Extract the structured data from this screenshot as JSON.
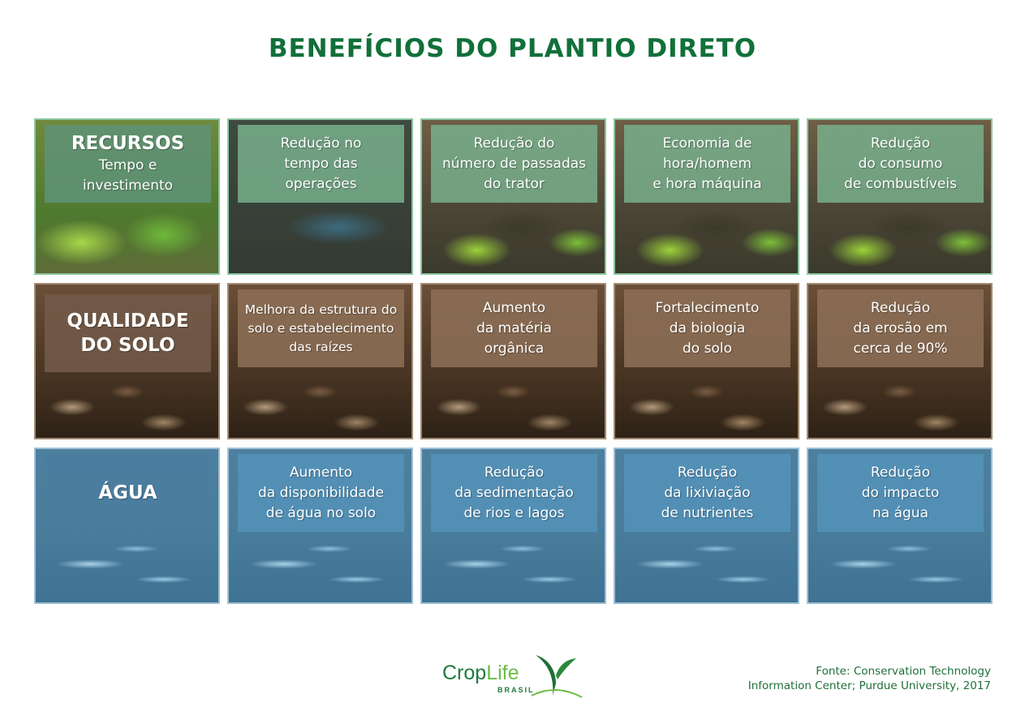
{
  "title": "BENEFÍCIOS DO PLANTIO DIRETO",
  "rows": [
    {
      "theme": "recursos",
      "cells": [
        {
          "heading": "RECURSOS",
          "text": [
            "Tempo e",
            "investimento"
          ]
        },
        {
          "text": [
            "Redução no",
            "tempo das",
            "operações"
          ]
        },
        {
          "text": [
            "Redução do",
            "número de passadas",
            "do trator"
          ]
        },
        {
          "text": [
            "Economia de",
            "hora/homem",
            "e hora máquina"
          ]
        },
        {
          "text": [
            "Redução",
            "do consumo",
            "de combustíveis"
          ]
        }
      ]
    },
    {
      "theme": "solo",
      "cells": [
        {
          "heading": "QUALIDADE DO SOLO",
          "text": []
        },
        {
          "text": [
            "Melhora da estrutura do",
            "solo e estabelecimento",
            "das raízes"
          ]
        },
        {
          "text": [
            "Aumento",
            "da matéria",
            "orgânica"
          ]
        },
        {
          "text": [
            "Fortalecimento",
            "da biologia",
            "do solo"
          ]
        },
        {
          "text": [
            "Redução",
            "da erosão em",
            "cerca de 90%"
          ]
        }
      ]
    },
    {
      "theme": "agua",
      "cells": [
        {
          "heading": "ÁGUA",
          "text": []
        },
        {
          "text": [
            "Aumento",
            "da disponibilidade",
            "de água no solo"
          ]
        },
        {
          "text": [
            "Redução",
            "da sedimentação",
            "de rios e lagos"
          ]
        },
        {
          "text": [
            "Redução",
            "da lixiviação",
            "de nutrientes"
          ]
        },
        {
          "text": [
            "Redução",
            "do impacto",
            "na água"
          ]
        }
      ]
    }
  ],
  "logo": {
    "name": "CropLife",
    "sub": "BRASIL"
  },
  "source": [
    "Fonte: Conservation Technology",
    "Information Center; Purdue University, 2017"
  ],
  "colors": {
    "title": "#11703a",
    "recursos": "#78af8c",
    "solo": "#8c6e55",
    "agua": "#5596be"
  }
}
